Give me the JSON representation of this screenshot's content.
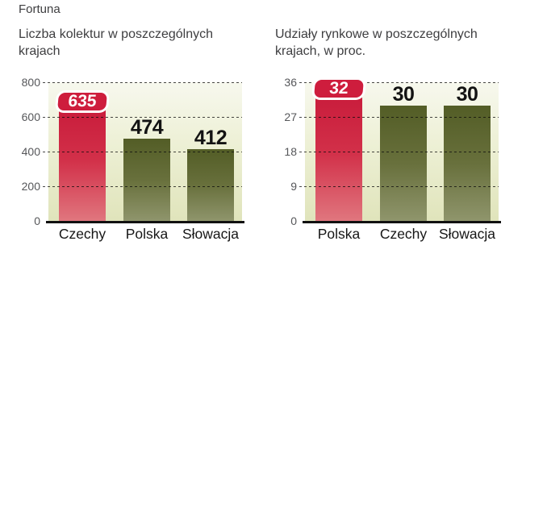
{
  "header": {
    "title": "Fortuna"
  },
  "chart_data": [
    {
      "type": "bar",
      "title": "Liczba kolektur w poszczególnych krajach",
      "categories": [
        "Czechy",
        "Polska",
        "Słowacja"
      ],
      "values": [
        635,
        474,
        412
      ],
      "value_labels": [
        "635",
        "474",
        "412"
      ],
      "highlight_index": 0,
      "xlabel": "",
      "ylabel": "",
      "ylim": [
        0,
        800
      ],
      "yticks": [
        800,
        600,
        400,
        200,
        0
      ],
      "grid": true,
      "legend": false
    },
    {
      "type": "bar",
      "title": "Udziały rynkowe w poszczególnych krajach, w proc.",
      "categories": [
        "Polska",
        "Czechy",
        "Słowacja"
      ],
      "values": [
        32,
        30,
        30
      ],
      "value_labels": [
        "32",
        "30",
        "30"
      ],
      "highlight_index": 0,
      "xlabel": "",
      "ylabel": "",
      "ylim": [
        0,
        36
      ],
      "yticks": [
        36,
        27,
        18,
        9,
        0
      ],
      "grid": true,
      "legend": false
    }
  ],
  "colors": {
    "highlight_top": "#c91d3c",
    "highlight_mid": "#d23049",
    "highlight_bottom": "#e0767e",
    "bar_top": "#535d26",
    "bar_mid": "#68703c",
    "bar_bottom": "#8f956c",
    "badge_bg": "#ce1d3d",
    "badge_text": "#ffffff",
    "plot_bg_top": "#f7f8ee",
    "plot_bg_mid": "#edf0d5",
    "plot_bg_bottom": "#e0e4bb",
    "axis": "#111111"
  }
}
